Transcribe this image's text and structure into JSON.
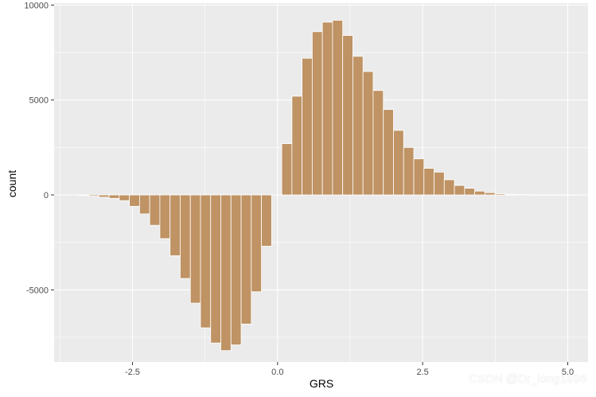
{
  "chart_data": {
    "type": "bar",
    "xlabel": "GRS",
    "ylabel": "count",
    "x_ticks": [
      -2.5,
      0.0,
      2.5,
      5.0
    ],
    "x_tick_labels": [
      "-2.5",
      "0.0",
      "2.5",
      "5.0"
    ],
    "y_ticks": [
      -5000,
      0,
      5000,
      10000
    ],
    "y_tick_labels": [
      "-5000",
      "0",
      "5000",
      "10000"
    ],
    "xlim": [
      -3.85,
      5.35
    ],
    "ylim": [
      -8800,
      10100
    ],
    "grid": true,
    "bin_width": 0.175,
    "series": [
      {
        "x": [
          -3.34,
          -3.165,
          -2.99,
          -2.815,
          -2.64,
          -2.465,
          -2.29,
          -2.115,
          -1.94,
          -1.765,
          -1.59,
          -1.415,
          -1.24,
          -1.065,
          -0.89,
          -0.715,
          -0.54,
          -0.365,
          -0.19,
          0.16,
          0.335,
          0.51,
          0.685,
          0.86,
          1.035,
          1.21,
          1.385,
          1.56,
          1.735,
          1.91,
          2.085,
          2.26,
          2.435,
          2.61,
          2.785,
          2.96,
          3.135,
          3.31,
          3.485,
          3.66,
          3.835,
          4.01,
          4.185,
          4.36,
          4.535,
          4.71,
          4.885,
          5.06
        ],
        "values": [
          -30,
          -60,
          -120,
          -180,
          -300,
          -600,
          -1000,
          -1600,
          -2300,
          -3200,
          -4400,
          -5700,
          -7000,
          -7800,
          -8200,
          -7900,
          -6800,
          -5100,
          -2700,
          2700,
          5200,
          7200,
          8600,
          9100,
          9200,
          8400,
          7300,
          6500,
          5500,
          4500,
          3400,
          2500,
          1900,
          1400,
          1200,
          800,
          500,
          350,
          200,
          120,
          60,
          30,
          15,
          10,
          5,
          5,
          3,
          2
        ]
      }
    ],
    "colors": {
      "bar_fill": "#bf9364",
      "bar_outline": "#ffffff",
      "panel_bg": "#ebebeb",
      "grid_major": "#ffffff",
      "tick_text": "#4d4d4d"
    }
  },
  "watermark": "CSDN @Dr_long1996"
}
